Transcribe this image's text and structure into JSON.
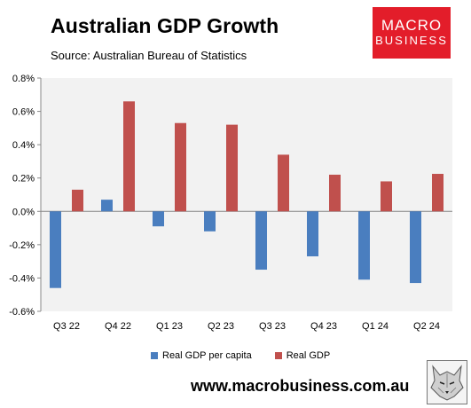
{
  "header": {
    "title": "Australian GDP Growth",
    "subtitle": "Source: Australian Bureau of Statistics"
  },
  "logo": {
    "line1": "MACRO",
    "line2": "BUSINESS",
    "color": "#e31d2a"
  },
  "footer": {
    "url": "www.macrobusiness.com.au"
  },
  "chart_data": {
    "type": "bar",
    "categories": [
      "Q3 22",
      "Q4 22",
      "Q1 23",
      "Q2 23",
      "Q3 23",
      "Q4 23",
      "Q1 24",
      "Q2 24"
    ],
    "series": [
      {
        "name": "Real GDP per capita",
        "color": "#4a7ebf",
        "values": [
          -0.46,
          0.07,
          -0.09,
          -0.12,
          -0.35,
          -0.27,
          -0.41,
          -0.43
        ]
      },
      {
        "name": "Real GDP",
        "color": "#c0504d",
        "values": [
          0.13,
          0.66,
          0.53,
          0.52,
          0.34,
          0.22,
          0.18,
          0.225
        ]
      }
    ],
    "yticks": [
      "0.8%",
      "0.6%",
      "0.4%",
      "0.2%",
      "0.0%",
      "-0.2%",
      "-0.4%",
      "-0.6%"
    ],
    "ylim": [
      -0.6,
      0.8
    ],
    "legend_position": "bottom",
    "plot_background": "#f2f2f2",
    "grid": false
  }
}
